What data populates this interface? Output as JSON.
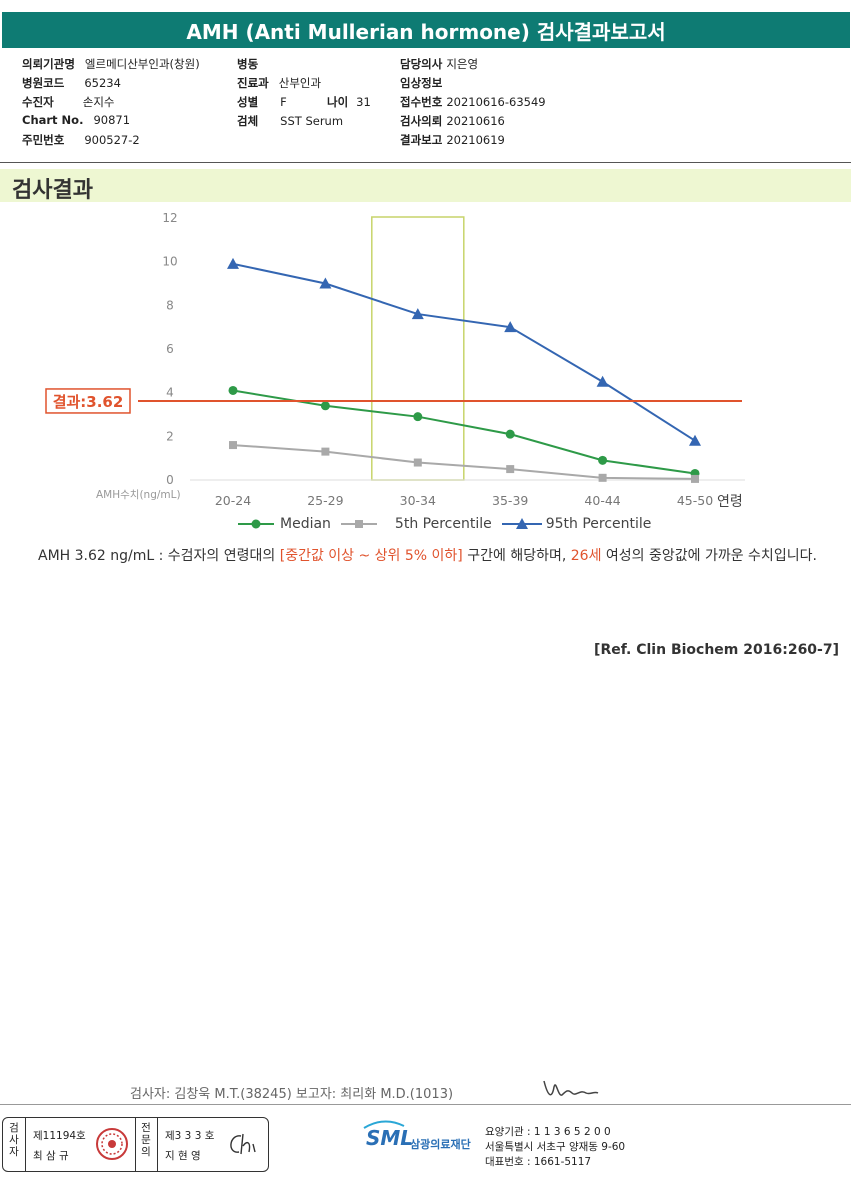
{
  "header": {
    "title": "AMH (Anti Mullerian hormone) 검사결과보고서"
  },
  "info": {
    "col1": [
      {
        "label": "의뢰기관명",
        "value": "엘르메디산부인과(창원)"
      },
      {
        "label": "병원코드",
        "value": "65234"
      },
      {
        "label": "수진자",
        "value": "손지수"
      },
      {
        "label": "Chart No.",
        "value": "90871"
      },
      {
        "label": "주민번호",
        "value": "900527-2"
      }
    ],
    "col2": [
      {
        "label": "병동",
        "value": ""
      },
      {
        "label": "진료과",
        "value": "산부인과"
      },
      {
        "label": "성별",
        "value": "F"
      },
      {
        "label": "검체",
        "value": "SST Serum"
      }
    ],
    "age": {
      "label": "나이",
      "value": "31"
    },
    "col3": [
      {
        "label": "담당의사",
        "value": "지은영"
      },
      {
        "label": "임상정보",
        "value": ""
      },
      {
        "label": "접수번호",
        "value": "20210616-63549"
      },
      {
        "label": "검사의뢰",
        "value": "20210616"
      },
      {
        "label": "결과보고",
        "value": "20210619"
      }
    ]
  },
  "section": {
    "title": "검사결과"
  },
  "chart_data": {
    "type": "line",
    "categories": [
      "20-24",
      "25-29",
      "30-34",
      "35-39",
      "40-44",
      "45-50"
    ],
    "xlabel": "연령",
    "ylabel": "AMH수치(ng/mL)",
    "ylim": [
      0,
      12
    ],
    "yticks": [
      "0",
      "2",
      "4",
      "6",
      "8",
      "10",
      "12"
    ],
    "highlight_category": "30-34",
    "result": {
      "label": "결과:3.62",
      "value": 3.62,
      "color": "#e0532d"
    },
    "series": [
      {
        "name": "Median",
        "color": "#2e9a48",
        "marker": "circle",
        "values": [
          4.1,
          3.4,
          2.9,
          2.1,
          0.9,
          0.3
        ]
      },
      {
        "name": "5th Percentile",
        "color": "#a9a9a9",
        "marker": "square",
        "values": [
          1.6,
          1.3,
          0.8,
          0.5,
          0.1,
          0.05
        ]
      },
      {
        "name": "95th Percentile",
        "color": "#3466b2",
        "marker": "triangle",
        "values": [
          9.9,
          9.0,
          7.6,
          7.0,
          4.5,
          1.8
        ]
      }
    ]
  },
  "summary": {
    "p1": "AMH  3.62 ng/mL : 수검자의 연령대의 ",
    "h1": "[중간값 이상 ~ 상위 5% 이하]",
    "p2": " 구간에 해당하며, ",
    "h2": "26세",
    "p3": " 여성의 중앙값에 가까운 수치입니다."
  },
  "reference": "[Ref. Clin Biochem 2016:260-7]",
  "footer": {
    "tester_line": "검사자: 김창욱 M.T.(38245)      보고자: 최리화 M.D.(1013)",
    "sign1_role": "검사자",
    "sign1_no": "제11194호",
    "sign1_name": "최 삼 규",
    "sign2_role": "전문의",
    "sign2_no": "제3 3 3 호",
    "sign2_name": "지 현 영",
    "org_logo": "SML",
    "org_name": "삼광의료재단",
    "org_code": "요양기관 : 1 1 3 6 5 2 0 0",
    "org_address": "서울특별시 서초구 양재동 9-60",
    "org_phone": "대표번호 : 1661-5117"
  }
}
